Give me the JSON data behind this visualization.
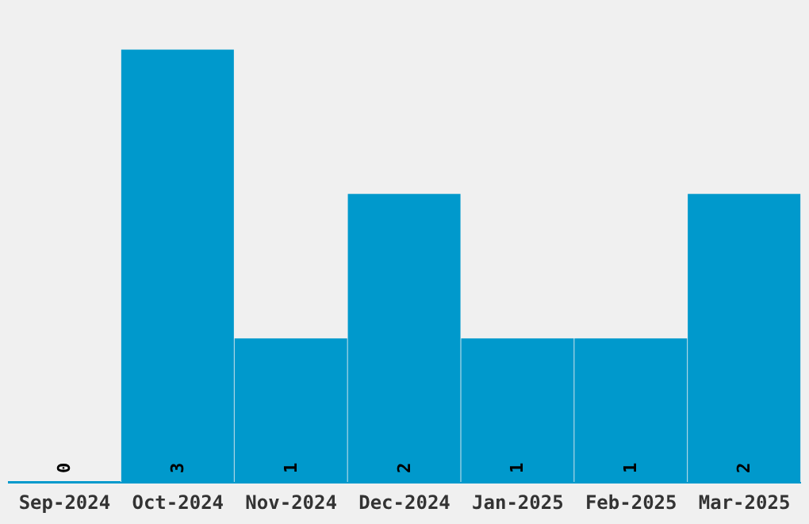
{
  "chart_data": {
    "type": "bar",
    "categories": [
      "Sep-2024",
      "Oct-2024",
      "Nov-2024",
      "Dec-2024",
      "Jan-2025",
      "Feb-2025",
      "Mar-2025"
    ],
    "values": [
      0,
      3,
      1,
      2,
      1,
      1,
      2
    ],
    "color": "#0099cc",
    "data_labels": true
  }
}
